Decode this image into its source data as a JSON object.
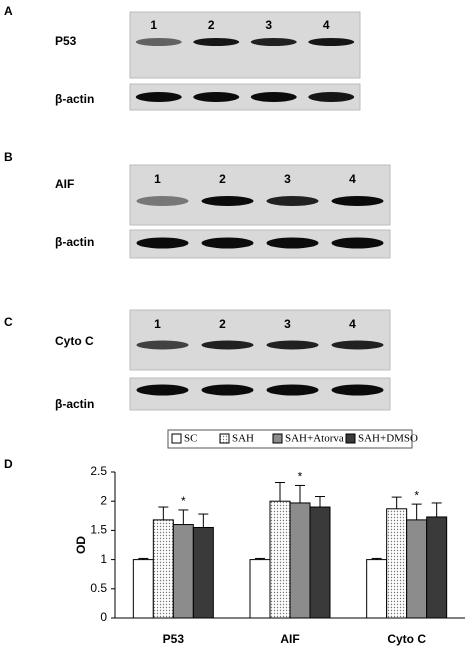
{
  "panels": [
    {
      "label": "A",
      "blots": [
        {
          "name": "P53",
          "lanes": [
            "1",
            "2",
            "3",
            "4"
          ]
        },
        {
          "name": "β-actin"
        }
      ]
    },
    {
      "label": "B",
      "blots": [
        {
          "name": "AIF",
          "lanes": [
            "1",
            "2",
            "3",
            "4"
          ]
        },
        {
          "name": "β-actin"
        }
      ]
    },
    {
      "label": "C",
      "blots": [
        {
          "name": "Cyto C",
          "lanes": [
            "1",
            "2",
            "3",
            "4"
          ]
        },
        {
          "name": "β-actin"
        }
      ]
    }
  ],
  "chart_label": "D",
  "chart_data": {
    "type": "bar",
    "categories": [
      "P53",
      "AIF",
      "Cyto C"
    ],
    "ylabel": "OD",
    "ylim": [
      0,
      2.5
    ],
    "yticks": [
      0,
      0.5,
      1,
      1.5,
      2,
      2.5
    ],
    "series": [
      {
        "name": "SC",
        "color": "#ffffff",
        "values": [
          1.0,
          1.0,
          1.0
        ],
        "errors": [
          0.02,
          0.02,
          0.02
        ]
      },
      {
        "name": "SAH",
        "color": "#e4e4e4",
        "values": [
          1.68,
          2.0,
          1.87
        ],
        "errors": [
          0.22,
          0.32,
          0.2
        ]
      },
      {
        "name": "SAH+Atorva",
        "color": "#8c8c8c",
        "values": [
          1.6,
          1.97,
          1.68
        ],
        "errors": [
          0.25,
          0.3,
          0.27
        ],
        "markers": [
          "*",
          "*",
          "*"
        ]
      },
      {
        "name": "SAH+DMSO",
        "color": "#3a3a3a",
        "values": [
          1.55,
          1.9,
          1.73
        ],
        "errors": [
          0.23,
          0.18,
          0.24
        ]
      }
    ]
  }
}
